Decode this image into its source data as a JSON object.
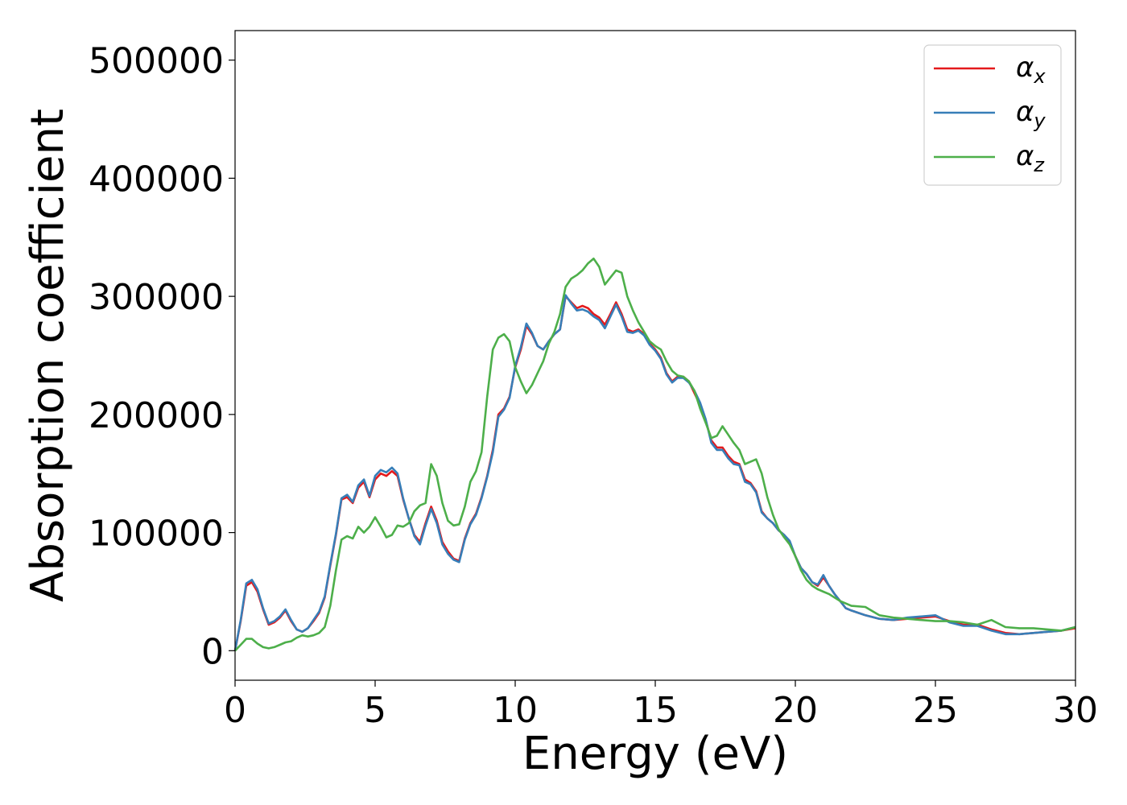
{
  "chart_data": {
    "type": "line",
    "title": "",
    "xlabel": "Energy (eV)",
    "ylabel": "Absorption coefficient",
    "xlim": [
      0,
      30
    ],
    "ylim": [
      -25000,
      525000
    ],
    "xticks": [
      0,
      5,
      10,
      15,
      20,
      25,
      30
    ],
    "yticks": [
      0,
      100000,
      200000,
      300000,
      400000,
      500000
    ],
    "grid": false,
    "legend_position": "top-right",
    "series": [
      {
        "name": "α_x",
        "label_base": "α",
        "label_sub": "x",
        "color": "#e41a1c",
        "x": [
          0,
          0.2,
          0.4,
          0.6,
          0.8,
          1.0,
          1.2,
          1.4,
          1.6,
          1.8,
          2.0,
          2.2,
          2.4,
          2.6,
          2.8,
          3.0,
          3.2,
          3.4,
          3.6,
          3.8,
          4.0,
          4.2,
          4.4,
          4.6,
          4.8,
          5.0,
          5.2,
          5.4,
          5.6,
          5.8,
          6.0,
          6.2,
          6.4,
          6.6,
          6.8,
          7.0,
          7.2,
          7.4,
          7.6,
          7.8,
          8.0,
          8.2,
          8.4,
          8.6,
          8.8,
          9.0,
          9.2,
          9.4,
          9.6,
          9.8,
          10.0,
          10.2,
          10.4,
          10.6,
          10.8,
          11.0,
          11.2,
          11.4,
          11.6,
          11.8,
          12.0,
          12.2,
          12.4,
          12.6,
          12.8,
          13.0,
          13.2,
          13.4,
          13.6,
          13.8,
          14.0,
          14.2,
          14.4,
          14.6,
          14.8,
          15.0,
          15.2,
          15.4,
          15.6,
          15.8,
          16.0,
          16.2,
          16.4,
          16.6,
          16.8,
          17.0,
          17.2,
          17.4,
          17.6,
          17.8,
          18.0,
          18.2,
          18.4,
          18.6,
          18.8,
          19.0,
          19.2,
          19.4,
          19.6,
          19.8,
          20.0,
          20.2,
          20.4,
          20.6,
          20.8,
          21.0,
          21.2,
          21.4,
          21.6,
          21.8,
          22.0,
          22.5,
          23.0,
          23.5,
          24.0,
          24.5,
          25.0,
          25.5,
          26.0,
          26.5,
          27.0,
          27.5,
          28.0,
          28.5,
          29.0,
          29.5,
          30.0
        ],
        "y": [
          0,
          25000,
          55000,
          58000,
          50000,
          35000,
          22000,
          24000,
          28000,
          34000,
          25000,
          18000,
          16000,
          19000,
          25000,
          32000,
          45000,
          72000,
          98000,
          128000,
          130000,
          125000,
          138000,
          143000,
          130000,
          145000,
          150000,
          148000,
          152000,
          148000,
          128000,
          112000,
          98000,
          92000,
          108000,
          122000,
          110000,
          92000,
          84000,
          78000,
          76000,
          95000,
          108000,
          116000,
          130000,
          148000,
          170000,
          200000,
          205000,
          215000,
          240000,
          255000,
          275000,
          268000,
          258000,
          255000,
          262000,
          268000,
          272000,
          300000,
          295000,
          290000,
          292000,
          290000,
          285000,
          282000,
          276000,
          285000,
          295000,
          285000,
          272000,
          270000,
          272000,
          268000,
          260000,
          255000,
          248000,
          235000,
          228000,
          232000,
          232000,
          228000,
          218000,
          208000,
          195000,
          178000,
          172000,
          172000,
          165000,
          160000,
          158000,
          145000,
          142000,
          135000,
          118000,
          112000,
          108000,
          102000,
          98000,
          92000,
          80000,
          70000,
          65000,
          58000,
          55000,
          62000,
          55000,
          48000,
          42000,
          36000,
          34000,
          30000,
          27000,
          26000,
          27000,
          28000,
          29000,
          25000,
          22000,
          22000,
          18000,
          15000,
          14000,
          15000,
          16000,
          17000,
          19000
        ]
      },
      {
        "name": "α_y",
        "label_base": "α",
        "label_sub": "y",
        "color": "#377eb8",
        "x": [
          0,
          0.2,
          0.4,
          0.6,
          0.8,
          1.0,
          1.2,
          1.4,
          1.6,
          1.8,
          2.0,
          2.2,
          2.4,
          2.6,
          2.8,
          3.0,
          3.2,
          3.4,
          3.6,
          3.8,
          4.0,
          4.2,
          4.4,
          4.6,
          4.8,
          5.0,
          5.2,
          5.4,
          5.6,
          5.8,
          6.0,
          6.2,
          6.4,
          6.6,
          6.8,
          7.0,
          7.2,
          7.4,
          7.6,
          7.8,
          8.0,
          8.2,
          8.4,
          8.6,
          8.8,
          9.0,
          9.2,
          9.4,
          9.6,
          9.8,
          10.0,
          10.2,
          10.4,
          10.6,
          10.8,
          11.0,
          11.2,
          11.4,
          11.6,
          11.8,
          12.0,
          12.2,
          12.4,
          12.6,
          12.8,
          13.0,
          13.2,
          13.4,
          13.6,
          13.8,
          14.0,
          14.2,
          14.4,
          14.6,
          14.8,
          15.0,
          15.2,
          15.4,
          15.6,
          15.8,
          16.0,
          16.2,
          16.4,
          16.6,
          16.8,
          17.0,
          17.2,
          17.4,
          17.6,
          17.8,
          18.0,
          18.2,
          18.4,
          18.6,
          18.8,
          19.0,
          19.2,
          19.4,
          19.6,
          19.8,
          20.0,
          20.2,
          20.4,
          20.6,
          20.8,
          21.0,
          21.2,
          21.4,
          21.6,
          21.8,
          22.0,
          22.5,
          23.0,
          23.5,
          24.0,
          24.5,
          25.0,
          25.5,
          26.0,
          26.5,
          27.0,
          27.5,
          28.0,
          28.5,
          29.0,
          29.5,
          30.0
        ],
        "y": [
          0,
          26000,
          57000,
          60000,
          52000,
          36000,
          23000,
          25000,
          29000,
          35000,
          26000,
          18000,
          16000,
          19000,
          26000,
          33000,
          46000,
          73000,
          99000,
          129000,
          132000,
          126000,
          140000,
          145000,
          131000,
          148000,
          153000,
          151000,
          155000,
          150000,
          129000,
          112000,
          97000,
          90000,
          106000,
          120000,
          108000,
          90000,
          82000,
          77000,
          75000,
          94000,
          107000,
          115000,
          129000,
          147000,
          168000,
          198000,
          204000,
          214000,
          241000,
          257000,
          277000,
          269000,
          258000,
          255000,
          262000,
          268000,
          272000,
          301000,
          294000,
          288000,
          289000,
          287000,
          283000,
          280000,
          273000,
          283000,
          293000,
          283000,
          270000,
          269000,
          271000,
          267000,
          259000,
          254000,
          247000,
          234000,
          227000,
          231000,
          231000,
          227000,
          220000,
          210000,
          196000,
          176000,
          170000,
          170000,
          163000,
          158000,
          157000,
          143000,
          141000,
          134000,
          117000,
          112000,
          108000,
          102000,
          98000,
          93000,
          80000,
          70000,
          65000,
          58000,
          56000,
          64000,
          55000,
          48000,
          42000,
          36000,
          34000,
          30000,
          27000,
          26000,
          28000,
          29000,
          30000,
          24000,
          21000,
          21000,
          17000,
          14000,
          14000,
          15000,
          16000,
          17000,
          20000
        ]
      },
      {
        "name": "α_z",
        "label_base": "α",
        "label_sub": "z",
        "color": "#4daf4a",
        "x": [
          0,
          0.2,
          0.4,
          0.6,
          0.8,
          1.0,
          1.2,
          1.4,
          1.6,
          1.8,
          2.0,
          2.2,
          2.4,
          2.6,
          2.8,
          3.0,
          3.2,
          3.4,
          3.6,
          3.8,
          4.0,
          4.2,
          4.4,
          4.6,
          4.8,
          5.0,
          5.2,
          5.4,
          5.6,
          5.8,
          6.0,
          6.2,
          6.4,
          6.6,
          6.8,
          7.0,
          7.2,
          7.4,
          7.6,
          7.8,
          8.0,
          8.2,
          8.4,
          8.6,
          8.8,
          9.0,
          9.2,
          9.4,
          9.6,
          9.8,
          10.0,
          10.2,
          10.4,
          10.6,
          10.8,
          11.0,
          11.2,
          11.4,
          11.6,
          11.8,
          12.0,
          12.2,
          12.4,
          12.6,
          12.8,
          13.0,
          13.2,
          13.4,
          13.6,
          13.8,
          14.0,
          14.2,
          14.4,
          14.6,
          14.8,
          15.0,
          15.2,
          15.4,
          15.6,
          15.8,
          16.0,
          16.2,
          16.4,
          16.6,
          16.8,
          17.0,
          17.2,
          17.4,
          17.6,
          17.8,
          18.0,
          18.2,
          18.4,
          18.6,
          18.8,
          19.0,
          19.2,
          19.4,
          19.6,
          19.8,
          20.0,
          20.2,
          20.4,
          20.6,
          20.8,
          21.0,
          21.2,
          21.4,
          21.6,
          21.8,
          22.0,
          22.5,
          23.0,
          23.5,
          24.0,
          24.5,
          25.0,
          25.5,
          26.0,
          26.5,
          27.0,
          27.5,
          28.0,
          28.5,
          29.0,
          29.5,
          30.0
        ],
        "y": [
          0,
          5000,
          10000,
          10000,
          6000,
          3000,
          2000,
          3000,
          5000,
          7000,
          8000,
          11000,
          13000,
          12000,
          13000,
          15000,
          20000,
          38000,
          68000,
          94000,
          97000,
          95000,
          105000,
          100000,
          105000,
          113000,
          105000,
          96000,
          98000,
          106000,
          105000,
          108000,
          118000,
          123000,
          125000,
          158000,
          148000,
          125000,
          110000,
          106000,
          107000,
          122000,
          143000,
          152000,
          168000,
          215000,
          255000,
          265000,
          268000,
          262000,
          240000,
          228000,
          218000,
          225000,
          235000,
          245000,
          260000,
          270000,
          285000,
          308000,
          315000,
          318000,
          322000,
          328000,
          332000,
          325000,
          310000,
          316000,
          322000,
          320000,
          300000,
          288000,
          278000,
          270000,
          262000,
          258000,
          255000,
          245000,
          237000,
          233000,
          232000,
          228000,
          220000,
          205000,
          193000,
          180000,
          182000,
          190000,
          183000,
          176000,
          170000,
          158000,
          160000,
          162000,
          150000,
          130000,
          115000,
          103000,
          96000,
          90000,
          80000,
          68000,
          60000,
          55000,
          52000,
          50000,
          48000,
          45000,
          42000,
          40000,
          38000,
          37000,
          30000,
          28000,
          27000,
          26000,
          25000,
          25000,
          24000,
          22000,
          26000,
          20000,
          19000,
          19000,
          18000,
          17000,
          20000
        ]
      }
    ]
  }
}
